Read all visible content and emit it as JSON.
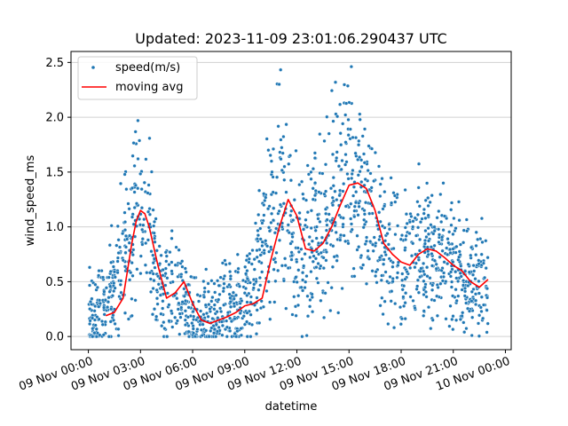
{
  "chart_data": {
    "type": "scatter",
    "title": "Updated: 2023-11-09 23:01:06.290437 UTC",
    "xlabel": "datetime",
    "ylabel": "wind_speed_ms",
    "xlim": [
      "2023-11-08T23:00:00",
      "2023-11-10T00:20:00"
    ],
    "ylim": [
      -0.12,
      2.6
    ],
    "x_ticks": [
      "2023-11-09T00:00",
      "2023-11-09T03:00",
      "2023-11-09T06:00",
      "2023-11-09T09:00",
      "2023-11-09T12:00",
      "2023-11-09T15:00",
      "2023-11-09T18:00",
      "2023-11-09T21:00",
      "2023-11-10T00:00"
    ],
    "x_tick_labels": [
      "09 Nov 00:00",
      "09 Nov 03:00",
      "09 Nov 06:00",
      "09 Nov 09:00",
      "09 Nov 12:00",
      "09 Nov 15:00",
      "09 Nov 18:00",
      "09 Nov 21:00",
      "10 Nov 00:00"
    ],
    "y_ticks": [
      0.0,
      0.5,
      1.0,
      1.5,
      2.0,
      2.5
    ],
    "y_tick_labels": [
      "0.0",
      "0.5",
      "1.0",
      "1.5",
      "2.0",
      "2.5"
    ],
    "grid": "y-major",
    "legend_position": "top-left",
    "colors": {
      "scatter": "#1f77b4",
      "line": "#ff0000",
      "grid": "#d0d0d0"
    },
    "series": [
      {
        "name": "speed(m/s)",
        "type": "scatter",
        "trend_x": [
          "2023-11-09T00:00",
          "2023-11-09T00:30",
          "2023-11-09T01:00",
          "2023-11-09T01:30",
          "2023-11-09T02:00",
          "2023-11-09T02:30",
          "2023-11-09T03:00",
          "2023-11-09T03:30",
          "2023-11-09T04:00",
          "2023-11-09T04:30",
          "2023-11-09T05:00",
          "2023-11-09T05:30",
          "2023-11-09T06:00",
          "2023-11-09T06:30",
          "2023-11-09T07:00",
          "2023-11-09T07:30",
          "2023-11-09T08:00",
          "2023-11-09T08:30",
          "2023-11-09T09:00",
          "2023-11-09T09:30",
          "2023-11-09T10:00",
          "2023-11-09T10:30",
          "2023-11-09T11:00",
          "2023-11-09T11:30",
          "2023-11-09T12:00",
          "2023-11-09T12:30",
          "2023-11-09T13:00",
          "2023-11-09T13:30",
          "2023-11-09T14:00",
          "2023-11-09T14:30",
          "2023-11-09T15:00",
          "2023-11-09T15:30",
          "2023-11-09T16:00",
          "2023-11-09T16:30",
          "2023-11-09T17:00",
          "2023-11-09T17:30",
          "2023-11-09T18:00",
          "2023-11-09T18:30",
          "2023-11-09T19:00",
          "2023-11-09T19:30",
          "2023-11-09T20:00",
          "2023-11-09T20:30",
          "2023-11-09T21:00",
          "2023-11-09T21:30",
          "2023-11-09T22:00",
          "2023-11-09T22:30",
          "2023-11-09T23:00"
        ],
        "trend_y": [
          0.2,
          0.2,
          0.25,
          0.45,
          0.8,
          1.05,
          1.15,
          0.95,
          0.4,
          0.4,
          0.5,
          0.3,
          0.15,
          0.14,
          0.18,
          0.2,
          0.28,
          0.3,
          0.32,
          0.45,
          0.85,
          1.15,
          1.25,
          1.1,
          0.8,
          0.78,
          0.85,
          1.0,
          1.2,
          1.35,
          1.4,
          1.35,
          1.15,
          0.9,
          0.8,
          0.75,
          0.68,
          0.72,
          0.78,
          0.8,
          0.75,
          0.7,
          0.65,
          0.6,
          0.5,
          0.45,
          0.52
        ],
        "spread": 0.4
      },
      {
        "name": "moving avg",
        "type": "line",
        "x": [
          "2023-11-09T01:00",
          "2023-11-09T01:30",
          "2023-11-09T02:00",
          "2023-11-09T02:15",
          "2023-11-09T02:30",
          "2023-11-09T02:45",
          "2023-11-09T03:00",
          "2023-11-09T03:15",
          "2023-11-09T03:30",
          "2023-11-09T04:00",
          "2023-11-09T04:30",
          "2023-11-09T05:00",
          "2023-11-09T05:30",
          "2023-11-09T06:00",
          "2023-11-09T06:30",
          "2023-11-09T07:00",
          "2023-11-09T07:30",
          "2023-11-09T08:00",
          "2023-11-09T08:30",
          "2023-11-09T09:00",
          "2023-11-09T09:30",
          "2023-11-09T10:00",
          "2023-11-09T10:30",
          "2023-11-09T11:00",
          "2023-11-09T11:30",
          "2023-11-09T12:00",
          "2023-11-09T12:30",
          "2023-11-09T13:00",
          "2023-11-09T13:30",
          "2023-11-09T14:00",
          "2023-11-09T14:30",
          "2023-11-09T15:00",
          "2023-11-09T15:30",
          "2023-11-09T16:00",
          "2023-11-09T16:30",
          "2023-11-09T17:00",
          "2023-11-09T17:30",
          "2023-11-09T18:00",
          "2023-11-09T18:30",
          "2023-11-09T19:00",
          "2023-11-09T19:30",
          "2023-11-09T20:00",
          "2023-11-09T20:30",
          "2023-11-09T21:00",
          "2023-11-09T21:30",
          "2023-11-09T22:00",
          "2023-11-09T22:30",
          "2023-11-09T23:00"
        ],
        "y": [
          0.19,
          0.22,
          0.35,
          0.6,
          0.85,
          1.05,
          1.15,
          1.12,
          1.0,
          0.65,
          0.35,
          0.4,
          0.5,
          0.3,
          0.15,
          0.12,
          0.15,
          0.18,
          0.22,
          0.28,
          0.3,
          0.35,
          0.7,
          1.0,
          1.25,
          1.1,
          0.8,
          0.78,
          0.85,
          1.0,
          1.2,
          1.38,
          1.4,
          1.35,
          1.15,
          0.85,
          0.75,
          0.68,
          0.65,
          0.75,
          0.8,
          0.78,
          0.72,
          0.65,
          0.6,
          0.5,
          0.45,
          0.52
        ]
      }
    ]
  }
}
